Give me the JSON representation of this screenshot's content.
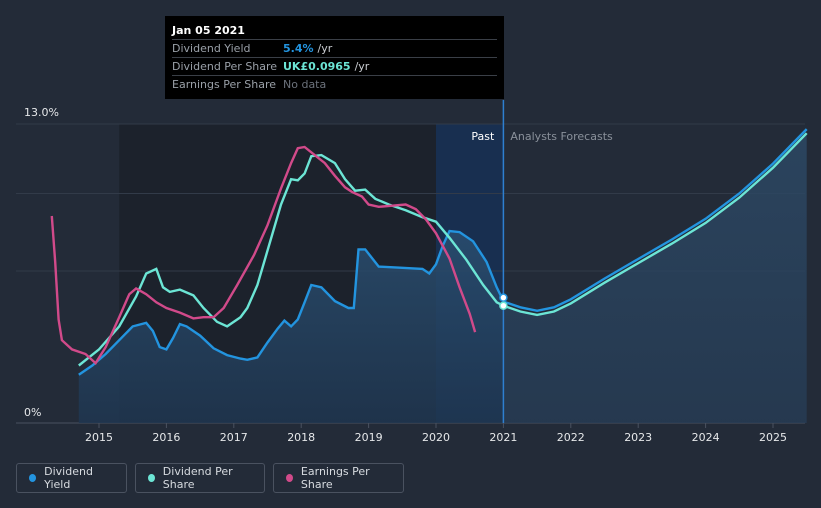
{
  "tooltip": {
    "date": "Jan 05 2021",
    "rows": [
      {
        "label": "Dividend Yield",
        "value": "5.4%",
        "unit": "/yr",
        "color": "#2394df"
      },
      {
        "label": "Dividend Per Share",
        "value": "UK£0.0965",
        "unit": "/yr",
        "color": "#6ce5d5"
      },
      {
        "label": "Earnings Per Share",
        "value": "No data",
        "unit": "",
        "color": "#6c727c"
      }
    ]
  },
  "legend": [
    {
      "label": "Dividend Yield",
      "color": "#2394df"
    },
    {
      "label": "Dividend Per Share",
      "color": "#6ce5d5"
    },
    {
      "label": "Earnings Per Share",
      "color": "#d14a8a"
    }
  ],
  "chart_data": {
    "type": "line",
    "ylabel_top": "13.0%",
    "ylabel_bottom": "0%",
    "ylim": [
      0,
      13
    ],
    "xlim": [
      2014.25,
      2025.5
    ],
    "x_ticks": [
      "2015",
      "2016",
      "2017",
      "2018",
      "2019",
      "2020",
      "2021",
      "2022",
      "2023",
      "2024",
      "2025"
    ],
    "region_past_label": "Past",
    "region_forecast_label": "Analysts Forecasts",
    "past_end": 2021.0,
    "highlight_start": 2020.0,
    "series": [
      {
        "name": "Dividend Yield",
        "color": "#2394df",
        "points": [
          [
            2014.7,
            2.1
          ],
          [
            2014.9,
            2.5
          ],
          [
            2015.1,
            3.0
          ],
          [
            2015.3,
            3.6
          ],
          [
            2015.5,
            4.2
          ],
          [
            2015.7,
            4.35
          ],
          [
            2015.8,
            4.0
          ],
          [
            2015.9,
            3.3
          ],
          [
            2016.0,
            3.2
          ],
          [
            2016.1,
            3.7
          ],
          [
            2016.2,
            4.3
          ],
          [
            2016.3,
            4.2
          ],
          [
            2016.5,
            3.8
          ],
          [
            2016.7,
            3.25
          ],
          [
            2016.9,
            2.95
          ],
          [
            2017.1,
            2.8
          ],
          [
            2017.2,
            2.75
          ],
          [
            2017.35,
            2.85
          ],
          [
            2017.5,
            3.5
          ],
          [
            2017.65,
            4.1
          ],
          [
            2017.75,
            4.45
          ],
          [
            2017.85,
            4.2
          ],
          [
            2017.95,
            4.5
          ],
          [
            2018.05,
            5.25
          ],
          [
            2018.15,
            6.0
          ],
          [
            2018.3,
            5.9
          ],
          [
            2018.5,
            5.3
          ],
          [
            2018.7,
            5.0
          ],
          [
            2018.78,
            5.0
          ],
          [
            2018.85,
            7.55
          ],
          [
            2018.95,
            7.55
          ],
          [
            2019.15,
            6.8
          ],
          [
            2019.5,
            6.75
          ],
          [
            2019.8,
            6.7
          ],
          [
            2019.9,
            6.5
          ],
          [
            2020.0,
            6.9
          ],
          [
            2020.1,
            7.7
          ],
          [
            2020.2,
            8.35
          ],
          [
            2020.35,
            8.3
          ],
          [
            2020.55,
            7.9
          ],
          [
            2020.75,
            7.0
          ],
          [
            2020.9,
            5.9
          ],
          [
            2021.0,
            5.3
          ]
        ]
      },
      {
        "name": "Dividend Per Share",
        "color": "#6ce5d5",
        "points": [
          [
            2014.7,
            2.5
          ],
          [
            2015.0,
            3.2
          ],
          [
            2015.3,
            4.2
          ],
          [
            2015.55,
            5.5
          ],
          [
            2015.7,
            6.5
          ],
          [
            2015.85,
            6.7
          ],
          [
            2015.95,
            5.9
          ],
          [
            2016.05,
            5.7
          ],
          [
            2016.2,
            5.8
          ],
          [
            2016.4,
            5.55
          ],
          [
            2016.55,
            5.0
          ],
          [
            2016.75,
            4.4
          ],
          [
            2016.9,
            4.2
          ],
          [
            2017.1,
            4.6
          ],
          [
            2017.2,
            5.0
          ],
          [
            2017.35,
            6.0
          ],
          [
            2017.55,
            8.0
          ],
          [
            2017.7,
            9.5
          ],
          [
            2017.85,
            10.6
          ],
          [
            2017.95,
            10.55
          ],
          [
            2018.05,
            10.85
          ],
          [
            2018.15,
            11.6
          ],
          [
            2018.3,
            11.65
          ],
          [
            2018.5,
            11.3
          ],
          [
            2018.65,
            10.6
          ],
          [
            2018.8,
            10.1
          ],
          [
            2018.95,
            10.15
          ],
          [
            2019.1,
            9.75
          ],
          [
            2019.3,
            9.5
          ],
          [
            2019.55,
            9.25
          ],
          [
            2019.8,
            8.95
          ],
          [
            2020.0,
            8.75
          ],
          [
            2020.2,
            8.05
          ],
          [
            2020.45,
            7.1
          ],
          [
            2020.7,
            6.0
          ],
          [
            2020.9,
            5.25
          ],
          [
            2021.0,
            5.1
          ],
          [
            2021.25,
            4.85
          ],
          [
            2021.5,
            4.7
          ],
          [
            2021.75,
            4.85
          ],
          [
            2022.0,
            5.2
          ],
          [
            2022.5,
            6.1
          ],
          [
            2023.0,
            6.95
          ],
          [
            2023.5,
            7.8
          ],
          [
            2024.0,
            8.7
          ],
          [
            2024.5,
            9.8
          ],
          [
            2025.0,
            11.1
          ],
          [
            2025.5,
            12.6
          ]
        ]
      },
      {
        "name": "Earnings Per Share",
        "color": "#d14a8a",
        "points": [
          [
            2014.3,
            9.0
          ],
          [
            2014.35,
            7.0
          ],
          [
            2014.4,
            4.5
          ],
          [
            2014.45,
            3.6
          ],
          [
            2014.6,
            3.2
          ],
          [
            2014.8,
            3.0
          ],
          [
            2014.95,
            2.6
          ],
          [
            2015.1,
            3.3
          ],
          [
            2015.3,
            4.6
          ],
          [
            2015.45,
            5.6
          ],
          [
            2015.55,
            5.85
          ],
          [
            2015.7,
            5.6
          ],
          [
            2015.85,
            5.25
          ],
          [
            2016.0,
            5.0
          ],
          [
            2016.2,
            4.8
          ],
          [
            2016.4,
            4.55
          ],
          [
            2016.55,
            4.6
          ],
          [
            2016.7,
            4.6
          ],
          [
            2016.85,
            5.0
          ],
          [
            2017.05,
            6.0
          ],
          [
            2017.3,
            7.3
          ],
          [
            2017.5,
            8.6
          ],
          [
            2017.7,
            10.2
          ],
          [
            2017.85,
            11.3
          ],
          [
            2017.95,
            11.95
          ],
          [
            2018.05,
            12.0
          ],
          [
            2018.2,
            11.65
          ],
          [
            2018.35,
            11.3
          ],
          [
            2018.5,
            10.75
          ],
          [
            2018.65,
            10.25
          ],
          [
            2018.75,
            10.05
          ],
          [
            2018.9,
            9.85
          ],
          [
            2019.0,
            9.5
          ],
          [
            2019.15,
            9.4
          ],
          [
            2019.35,
            9.45
          ],
          [
            2019.55,
            9.5
          ],
          [
            2019.7,
            9.3
          ],
          [
            2019.85,
            8.85
          ],
          [
            2020.0,
            8.25
          ],
          [
            2020.2,
            7.15
          ],
          [
            2020.35,
            5.9
          ],
          [
            2020.5,
            4.75
          ],
          [
            2020.58,
            3.95
          ]
        ]
      }
    ]
  }
}
